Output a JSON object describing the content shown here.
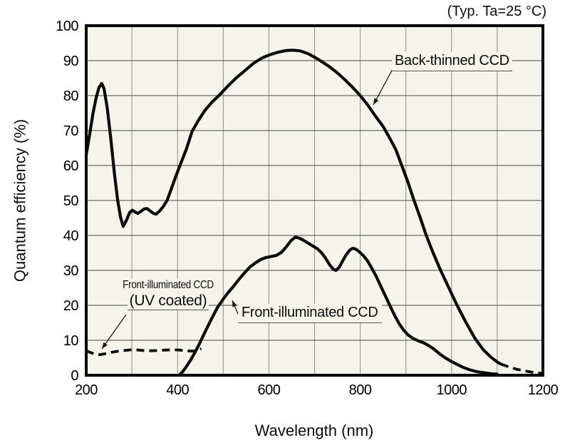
{
  "colors": {
    "outer_bg": "#ffffff",
    "plot_bg": "#f4f3ec",
    "grid_horizontal": "#4a4a4a",
    "grid_vertical": "#8e8e8e",
    "border": "#000000",
    "curve": "#0b0b0b",
    "leader": "#1a1a1a"
  },
  "axes": {
    "x": {
      "title": "Wavelength (nm)",
      "min": 200,
      "max": 1200,
      "tick_labels": [
        200,
        400,
        600,
        800,
        1000,
        1200
      ],
      "grid_interval": 100
    },
    "y": {
      "title": "Quantum efficiency (%)",
      "min": 0,
      "max": 100,
      "tick_labels": [
        0,
        10,
        20,
        30,
        40,
        50,
        60,
        70,
        80,
        90,
        100
      ],
      "grid_interval": 10
    }
  },
  "curve_labels": {
    "back_thinned": "Back-thinned CCD",
    "front_illuminated": "Front-illuminated CCD",
    "uv_line1": "Front-illuminated CCD",
    "uv_line2": "(UV coated)"
  },
  "chart_data": {
    "type": "line",
    "annotation": "(Typ. Ta=25 °C)",
    "xlabel": "Wavelength (nm)",
    "ylabel": "Quantum efficiency (%)",
    "xlim": [
      200,
      1200
    ],
    "ylim": [
      0,
      100
    ],
    "grid": true,
    "legend_position": "on-curve-annotations",
    "series": [
      {
        "name": "Back-thinned CCD",
        "style": "solid",
        "points": [
          [
            200,
            63
          ],
          [
            207,
            68.5
          ],
          [
            215,
            75
          ],
          [
            222,
            79.5
          ],
          [
            228,
            82.3
          ],
          [
            234,
            83.5
          ],
          [
            239,
            82
          ],
          [
            246,
            76.5
          ],
          [
            254,
            67.5
          ],
          [
            262,
            57.5
          ],
          [
            269,
            50
          ],
          [
            275,
            45.3
          ],
          [
            281,
            42.6
          ],
          [
            288,
            44.3
          ],
          [
            295,
            46.5
          ],
          [
            301,
            47.2
          ],
          [
            307,
            46.7
          ],
          [
            313,
            46.3
          ],
          [
            320,
            46.9
          ],
          [
            327,
            47.6
          ],
          [
            333,
            47.7
          ],
          [
            340,
            47
          ],
          [
            347,
            46.3
          ],
          [
            353,
            46.1
          ],
          [
            361,
            47
          ],
          [
            369,
            48.3
          ],
          [
            377,
            50
          ],
          [
            386,
            53.2
          ],
          [
            396,
            56.8
          ],
          [
            406,
            60.2
          ],
          [
            419,
            64.6
          ],
          [
            432,
            69.8
          ],
          [
            446,
            73
          ],
          [
            460,
            75.8
          ],
          [
            476,
            78.2
          ],
          [
            492,
            80.2
          ],
          [
            510,
            82.7
          ],
          [
            528,
            85
          ],
          [
            548,
            87.2
          ],
          [
            566,
            89.2
          ],
          [
            584,
            90.7
          ],
          [
            602,
            91.7
          ],
          [
            620,
            92.4
          ],
          [
            638,
            92.9
          ],
          [
            652,
            93
          ],
          [
            668,
            92.8
          ],
          [
            684,
            92.1
          ],
          [
            700,
            91
          ],
          [
            716,
            89.7
          ],
          [
            733,
            88.2
          ],
          [
            749,
            86.6
          ],
          [
            766,
            84.6
          ],
          [
            783,
            82.4
          ],
          [
            800,
            80
          ],
          [
            817,
            77.2
          ],
          [
            834,
            74
          ],
          [
            850,
            71.2
          ],
          [
            864,
            68
          ],
          [
            878,
            64.5
          ],
          [
            891,
            60
          ],
          [
            904,
            55.4
          ],
          [
            917,
            50.3
          ],
          [
            931,
            45.2
          ],
          [
            944,
            40.2
          ],
          [
            959,
            35.2
          ],
          [
            976,
            30
          ],
          [
            994,
            25
          ],
          [
            1012,
            20
          ],
          [
            1031,
            15.2
          ],
          [
            1051,
            10.6
          ],
          [
            1070,
            7.2
          ],
          [
            1086,
            5.2
          ],
          [
            1100,
            3.8
          ],
          [
            1108,
            3.2
          ]
        ]
      },
      {
        "name": "Back-thinned CCD (dashed extension)",
        "style": "dashed",
        "points": [
          [
            1108,
            3.2
          ],
          [
            1125,
            2.4
          ],
          [
            1143,
            1.7
          ],
          [
            1162,
            1.2
          ],
          [
            1180,
            0.8
          ],
          [
            1198,
            0.5
          ]
        ]
      },
      {
        "name": "Front-illuminated CCD",
        "style": "solid",
        "points": [
          [
            404,
            0
          ],
          [
            411,
            1
          ],
          [
            419,
            2.4
          ],
          [
            428,
            4.2
          ],
          [
            438,
            6.5
          ],
          [
            449,
            9.3
          ],
          [
            461,
            12.6
          ],
          [
            474,
            16
          ],
          [
            487,
            19.3
          ],
          [
            500,
            21.8
          ],
          [
            511,
            23.7
          ],
          [
            521,
            25.2
          ],
          [
            533,
            27.2
          ],
          [
            546,
            29.2
          ],
          [
            558,
            30.9
          ],
          [
            570,
            32.1
          ],
          [
            582,
            33.1
          ],
          [
            594,
            33.7
          ],
          [
            606,
            34
          ],
          [
            617,
            34.3
          ],
          [
            628,
            35.2
          ],
          [
            639,
            36.9
          ],
          [
            649,
            38.6
          ],
          [
            658,
            39.5
          ],
          [
            667,
            39.2
          ],
          [
            676,
            38.6
          ],
          [
            686,
            37.8
          ],
          [
            696,
            37
          ],
          [
            706,
            36.2
          ],
          [
            715,
            35.1
          ],
          [
            724,
            33.5
          ],
          [
            733,
            31.6
          ],
          [
            741,
            30.3
          ],
          [
            747,
            30
          ],
          [
            754,
            30.9
          ],
          [
            761,
            32.6
          ],
          [
            769,
            34.4
          ],
          [
            777,
            35.8
          ],
          [
            783,
            36.3
          ],
          [
            790,
            36.1
          ],
          [
            798,
            35.3
          ],
          [
            807,
            34.2
          ],
          [
            816,
            32.7
          ],
          [
            825,
            30.7
          ],
          [
            835,
            28.3
          ],
          [
            845,
            25.5
          ],
          [
            855,
            22.7
          ],
          [
            865,
            19.9
          ],
          [
            875,
            17.2
          ],
          [
            885,
            14.8
          ],
          [
            895,
            12.9
          ],
          [
            905,
            11.5
          ],
          [
            916,
            10.5
          ],
          [
            928,
            9.8
          ],
          [
            940,
            9.2
          ],
          [
            951,
            8.4
          ],
          [
            963,
            7.3
          ],
          [
            975,
            6
          ],
          [
            987,
            4.9
          ],
          [
            999,
            4
          ],
          [
            1012,
            3.1
          ],
          [
            1026,
            2.2
          ],
          [
            1041,
            1.5
          ],
          [
            1056,
            1
          ],
          [
            1072,
            0.7
          ],
          [
            1088,
            0.4
          ],
          [
            1100,
            0.3
          ]
        ]
      },
      {
        "name": "Front-illuminated CCD (UV coated)",
        "style": "dashed",
        "points": [
          [
            200,
            7
          ],
          [
            209,
            6.5
          ],
          [
            220,
            6
          ],
          [
            231,
            5.9
          ],
          [
            243,
            6.2
          ],
          [
            256,
            6.6
          ],
          [
            270,
            6.9
          ],
          [
            285,
            7.1
          ],
          [
            300,
            7.3
          ],
          [
            315,
            7.2
          ],
          [
            330,
            7
          ],
          [
            345,
            7
          ],
          [
            360,
            7.1
          ],
          [
            375,
            7.2
          ],
          [
            390,
            7.3
          ],
          [
            404,
            7.2
          ],
          [
            418,
            7
          ],
          [
            431,
            6.9
          ],
          [
            442,
            7.1
          ],
          [
            452,
            7.6
          ]
        ]
      }
    ]
  }
}
